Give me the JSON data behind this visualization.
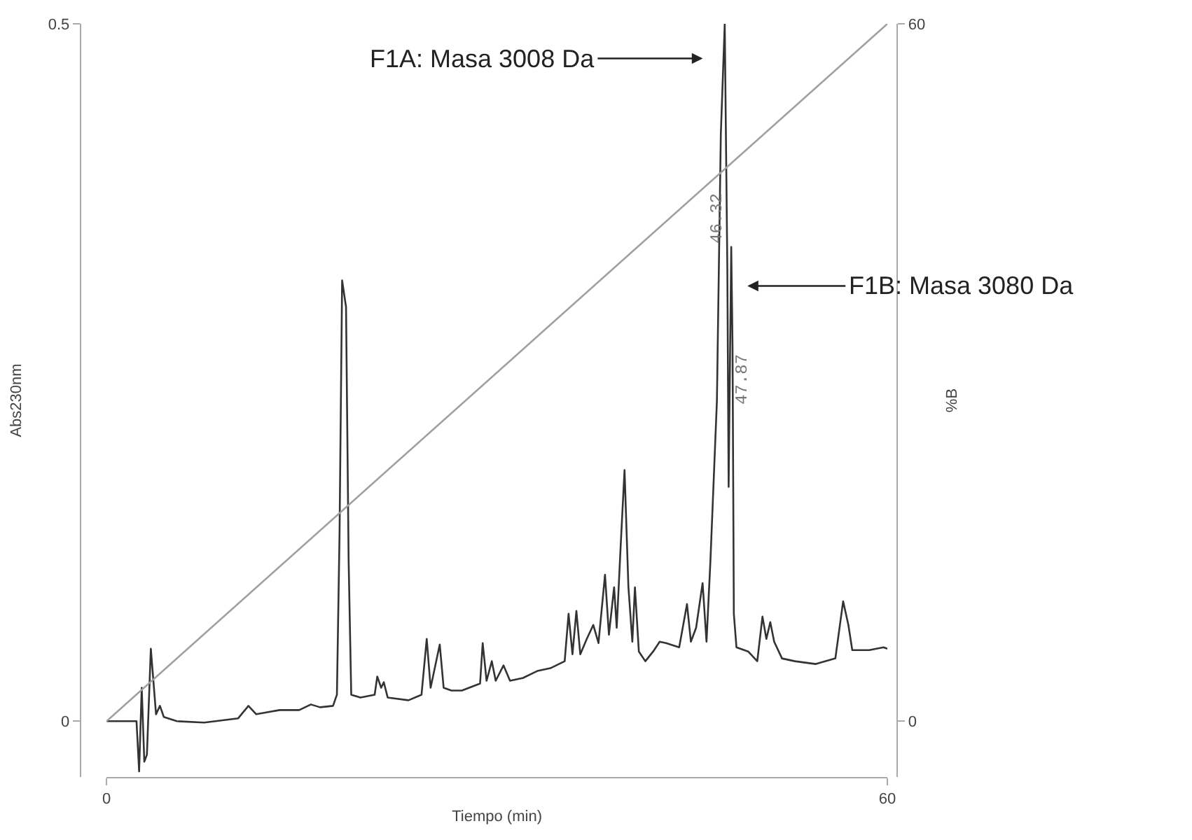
{
  "chart_data": {
    "type": "line",
    "xlabel": "Tiempo (min)",
    "ylabel": "Abs230nm",
    "y2label": "%B",
    "xlim": [
      0,
      60
    ],
    "xticks": [
      0,
      60
    ],
    "ylim": [
      -0.04,
      0.5
    ],
    "yticks": [
      0,
      0.5
    ],
    "y2lim": [
      -4.8,
      60
    ],
    "y2ticks": [
      0,
      60
    ],
    "marker": "none",
    "line_style": "solid",
    "series": [
      {
        "color": "#333333",
        "x": [
          0,
          2.3,
          2.5,
          2.7,
          2.9,
          3.1,
          3.4,
          3.8,
          4.1,
          4.4,
          5.4,
          7.5,
          10.1,
          10.9,
          11.5,
          13.3,
          14.8,
          15.7,
          16.4,
          17.4,
          17.7,
          17.9,
          18.1,
          18.4,
          18.6,
          18.8,
          19.5,
          20.6,
          20.8,
          21.1,
          21.3,
          21.6,
          23.2,
          24.2,
          24.6,
          24.9,
          25.6,
          25.9,
          26.5,
          27.3,
          28.7,
          28.9,
          29.2,
          29.6,
          29.9,
          30.5,
          31.0,
          32.0,
          33.1,
          34.1,
          35.2,
          35.5,
          35.8,
          36.1,
          36.4,
          36.9,
          37.4,
          37.8,
          38.3,
          38.6,
          39.0,
          39.2,
          39.5,
          39.8,
          40.1,
          40.4,
          40.6,
          40.9,
          41.4,
          42.0,
          42.5,
          43.0,
          44.0,
          44.6,
          44.9,
          45.3,
          45.8,
          46.1,
          46.4,
          46.9,
          47.2,
          47.5,
          47.7,
          47.8,
          48.0,
          48.1,
          48.2,
          48.4,
          49.3,
          50.0,
          50.4,
          50.7,
          51.0,
          51.3,
          51.9,
          52.9,
          54.5,
          56.0,
          56.6,
          57.0,
          57.3,
          58.6,
          59.7,
          60
        ],
        "values": [
          0,
          0,
          -0.036,
          0.024,
          -0.029,
          -0.024,
          0.052,
          0.005,
          0.011,
          0.003,
          0,
          -0.001,
          0.002,
          0.011,
          0.005,
          0.008,
          0.008,
          0.012,
          0.01,
          0.011,
          0.019,
          0.134,
          0.316,
          0.297,
          0.115,
          0.019,
          0.017,
          0.019,
          0.032,
          0.024,
          0.028,
          0.017,
          0.015,
          0.019,
          0.059,
          0.024,
          0.055,
          0.024,
          0.022,
          0.022,
          0.027,
          0.056,
          0.029,
          0.043,
          0.029,
          0.04,
          0.029,
          0.031,
          0.036,
          0.038,
          0.043,
          0.077,
          0.048,
          0.079,
          0.048,
          0.059,
          0.069,
          0.056,
          0.105,
          0.062,
          0.096,
          0.067,
          0.125,
          0.18,
          0.096,
          0.057,
          0.096,
          0.05,
          0.043,
          0.05,
          0.057,
          0.056,
          0.053,
          0.084,
          0.057,
          0.067,
          0.099,
          0.057,
          0.115,
          0.23,
          0.421,
          0.5,
          0.326,
          0.168,
          0.34,
          0.268,
          0.077,
          0.053,
          0.05,
          0.043,
          0.075,
          0.059,
          0.071,
          0.057,
          0.045,
          0.043,
          0.041,
          0.045,
          0.086,
          0.069,
          0.051,
          0.051,
          0.053,
          0.052
        ]
      },
      {
        "color": "#a0a0a0",
        "axis": "y2",
        "x": [
          0,
          60
        ],
        "values": [
          0,
          60
        ]
      }
    ],
    "annotations": [
      "F1A: Masa 3008 Da",
      "F1B: Masa 3080 Da",
      "46.32",
      "47.87"
    ]
  }
}
